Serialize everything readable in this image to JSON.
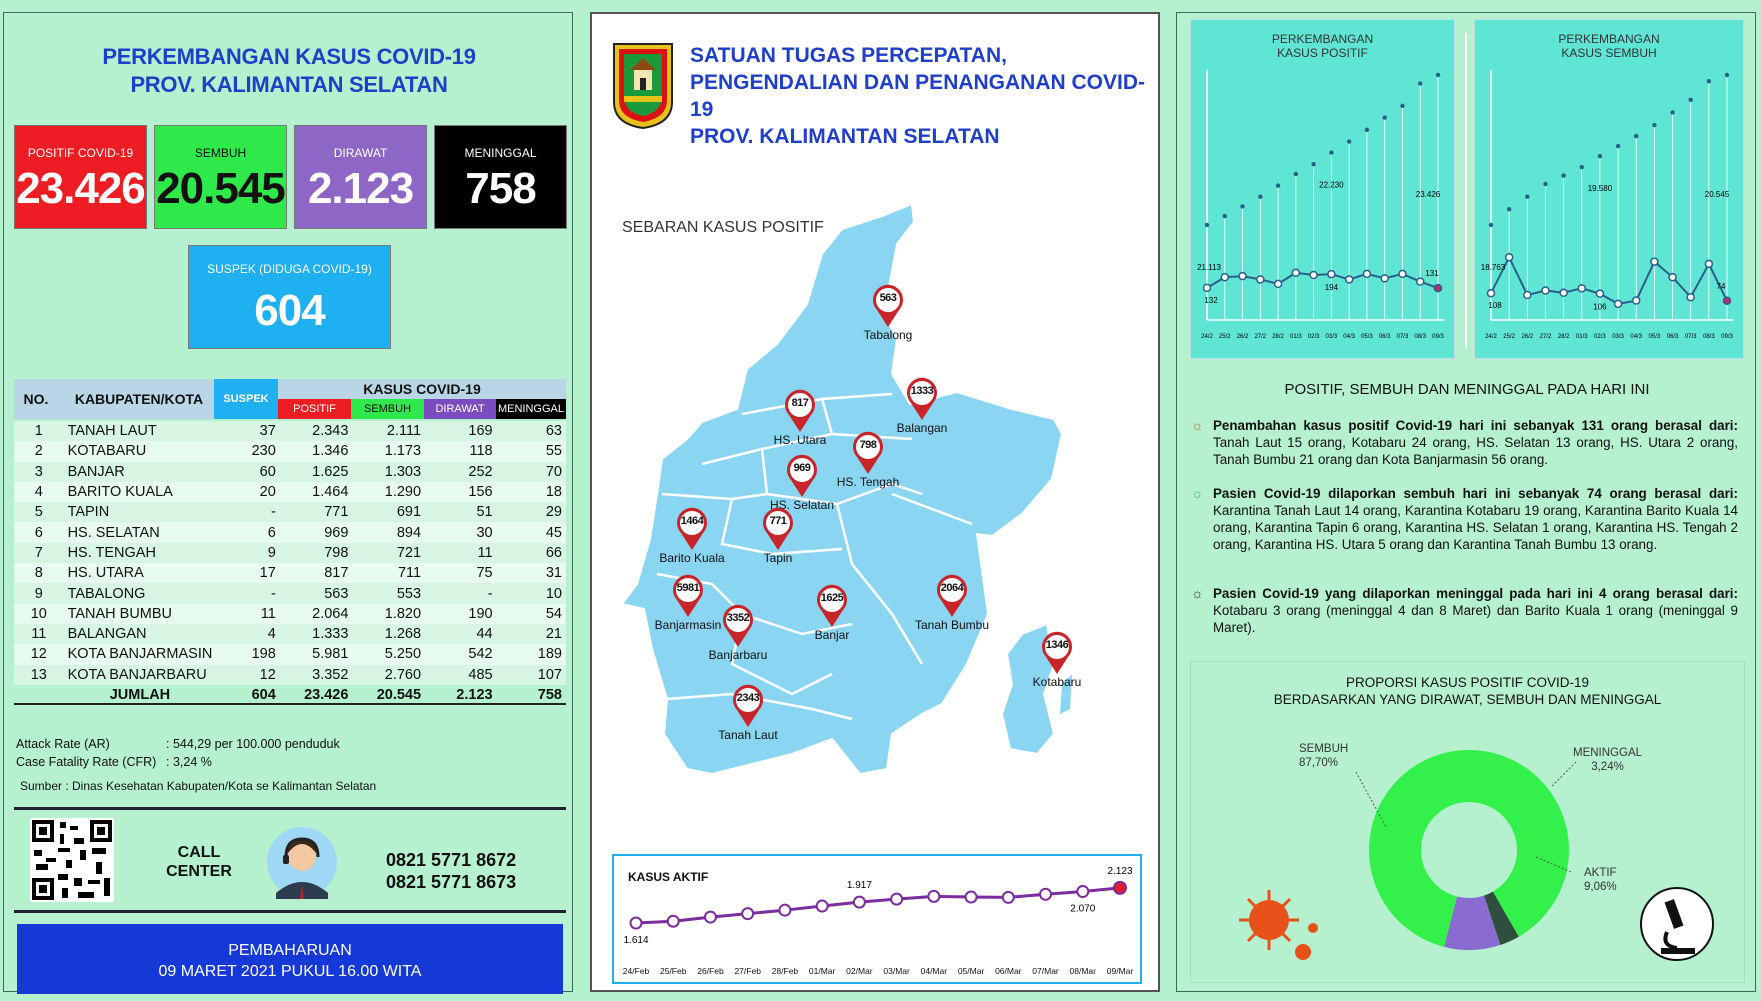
{
  "left": {
    "title_line1": "PERKEMBANGAN KASUS COVID-19",
    "title_line2": "PROV. KALIMANTAN SELATAN",
    "stats": {
      "positif_label": "POSITIF COVID-19",
      "positif_value": "23.426",
      "sembuh_label": "SEMBUH",
      "sembuh_value": "20.545",
      "dirawat_label": "DIRAWAT",
      "dirawat_value": "2.123",
      "meninggal_label": "MENINGGAL",
      "meninggal_value": "758",
      "suspek_label": "SUSPEK (DIDUGA COVID-19)",
      "suspek_value": "604"
    },
    "table": {
      "h_no": "NO.",
      "h_kab": "KABUPATEN/KOTA",
      "h_suspek": "SUSPEK",
      "h_kasus": "KASUS COVID-19",
      "h_positif": "POSITIF",
      "h_sembuh": "SEMBUH",
      "h_dirawat": "DIRAWAT",
      "h_meninggal": "MENINGGAL",
      "rows": [
        [
          "1",
          "TANAH LAUT",
          "37",
          "2.343",
          "2.111",
          "169",
          "63"
        ],
        [
          "2",
          "KOTABARU",
          "230",
          "1.346",
          "1.173",
          "118",
          "55"
        ],
        [
          "3",
          "BANJAR",
          "60",
          "1.625",
          "1.303",
          "252",
          "70"
        ],
        [
          "4",
          "BARITO KUALA",
          "20",
          "1.464",
          "1.290",
          "156",
          "18"
        ],
        [
          "5",
          "TAPIN",
          "-",
          "771",
          "691",
          "51",
          "29"
        ],
        [
          "6",
          "HS. SELATAN",
          "6",
          "969",
          "894",
          "30",
          "45"
        ],
        [
          "7",
          "HS. TENGAH",
          "9",
          "798",
          "721",
          "11",
          "66"
        ],
        [
          "8",
          "HS. UTARA",
          "17",
          "817",
          "711",
          "75",
          "31"
        ],
        [
          "9",
          "TABALONG",
          "-",
          "563",
          "553",
          "-",
          "10"
        ],
        [
          "10",
          "TANAH BUMBU",
          "11",
          "2.064",
          "1.820",
          "190",
          "54"
        ],
        [
          "11",
          "BALANGAN",
          "4",
          "1.333",
          "1.268",
          "44",
          "21"
        ],
        [
          "12",
          "KOTA BANJARMASIN",
          "198",
          "5.981",
          "5.250",
          "542",
          "189"
        ],
        [
          "13",
          "KOTA BANJARBARU",
          "12",
          "3.352",
          "2.760",
          "485",
          "107"
        ]
      ],
      "total": [
        "JUMLAH",
        "604",
        "23.426",
        "20.545",
        "2.123",
        "758"
      ]
    },
    "ar_label": "Attack Rate (AR)",
    "ar_value": ": 544,29 per 100.000 penduduk",
    "cfr_label": "Case Fatality Rate (CFR)",
    "cfr_value": ": 3,24 %",
    "source": "Sumber : Dinas Kesehatan Kabupaten/Kota se Kalimantan Selatan",
    "call_center_1": "CALL",
    "call_center_2": "CENTER",
    "phone1": "0821 5771 8672",
    "phone2": "0821 5771 8673",
    "update_1": "PEMBAHARUAN",
    "update_2": "09 MARET 2021 PUKUL 16.00 WITA"
  },
  "middle": {
    "title_1": "SATUAN TUGAS PERCEPATAN,",
    "title_2": "PENGENDALIAN DAN PENANGANAN COVID-19",
    "title_3": "PROV. KALIMANTAN SELATAN",
    "map_title": "SEBARAN KASUS POSITIF",
    "regions": [
      {
        "name": "Tabalong",
        "value": "563"
      },
      {
        "name": "HS. Utara",
        "value": "817"
      },
      {
        "name": "Balangan",
        "value": "1333"
      },
      {
        "name": "HS. Tengah",
        "value": "798"
      },
      {
        "name": "HS. Selatan",
        "value": "969"
      },
      {
        "name": "Barito Kuala",
        "value": "1464"
      },
      {
        "name": "Tapin",
        "value": "771"
      },
      {
        "name": "Banjarmasin",
        "value": "5981"
      },
      {
        "name": "Banjarbaru",
        "value": "3352"
      },
      {
        "name": "Banjar",
        "value": "1625"
      },
      {
        "name": "Tanah Bumbu",
        "value": "2064"
      },
      {
        "name": "Kotabaru",
        "value": "1346"
      },
      {
        "name": "Tanah Laut",
        "value": "2343"
      }
    ],
    "kasus_aktif_title": "KASUS AKTIF"
  },
  "right": {
    "chart1_title_1": "PERKEMBANGAN",
    "chart1_title_2": "KASUS POSITIF",
    "chart2_title_1": "PERKEMBANGAN",
    "chart2_title_2": "KASUS SEMBUH",
    "today_title": "POSITIF, SEMBUH DAN MENINGGAL PADA HARI INI",
    "b1_bold": "Penambahan kasus positif Covid-19 hari ini sebanyak 131 orang berasal dari:",
    "b1_text": " Tanah Laut 15 orang, Kotabaru 24 orang, HS. Selatan 13 orang, HS. Utara 2 orang, Tanah Bumbu 21 orang dan Kota Banjarmasin 56 orang.",
    "b2_bold": "Pasien Covid-19 dilaporkan sembuh hari ini sebanyak 74 orang berasal dari:",
    "b2_text": " Karantina Tanah Laut 14 orang, Karantina Kotabaru 19 orang, Karantina Barito Kuala 14 orang, Karantina Tapin 6 orang, Karantina HS. Selatan 1 orang, Karantina HS. Tengah 2 orang, Karantina HS. Utara 5 orang dan Karantina Tanah Bumbu 13 orang.",
    "b3_bold": "Pasien Covid-19 yang dilaporkan meninggal pada hari ini 4 orang berasal dari:",
    "b3_text": " Kotabaru 3 orang (meninggal 4 dan 8 Maret) dan Barito Kuala 1 orang (meninggal 9 Maret).",
    "prop_title_1": "PROPORSI KASUS POSITIF COVID-19",
    "prop_title_2": "BERDASARKAN YANG DIRAWAT, SEMBUH DAN MENINGGAL",
    "donut": {
      "sembuh_label": "SEMBUH",
      "sembuh_pct": "87,70%",
      "meninggal_label": "MENINGGAL",
      "meninggal_pct": "3,24%",
      "aktif_label": "AKTIF",
      "aktif_pct": "9,06%"
    }
  },
  "chart_data": [
    {
      "type": "line",
      "title": "KASUS AKTIF",
      "x": [
        "24/Feb",
        "25/Feb",
        "26/Feb",
        "27/Feb",
        "28/Feb",
        "01/Mar",
        "02/Mar",
        "03/Mar",
        "04/Mar",
        "05/Mar",
        "06/Mar",
        "07/Mar",
        "08/Mar",
        "09/Mar"
      ],
      "values": [
        1614,
        1640,
        1700,
        1750,
        1800,
        1860,
        1917,
        1960,
        2000,
        1990,
        1985,
        2030,
        2070,
        2123
      ],
      "labels_shown": {
        "0": "1.614",
        "6": "1.917",
        "12": "2.070",
        "13": "2.123"
      },
      "color": "#7b2c9e"
    },
    {
      "type": "line",
      "title": "PERKEMBANGAN KASUS POSITIF",
      "x": [
        "24/2",
        "25/2",
        "26/2",
        "27/2",
        "28/2",
        "01/3",
        "02/3",
        "03/3",
        "04/3",
        "05/3",
        "06/3",
        "07/3",
        "08/3",
        "09/3"
      ],
      "cumulative": [
        21113,
        21250,
        21400,
        21550,
        21720,
        21900,
        22050,
        22230,
        22400,
        22580,
        22770,
        22950,
        23295,
        23426
      ],
      "daily": [
        132,
        180,
        185,
        170,
        150,
        200,
        190,
        194,
        170,
        195,
        175,
        195,
        160,
        131
      ],
      "labels_shown": {
        "cum_0": "21.113",
        "cum_7": "22.230",
        "cum_13": "23.426",
        "daily_0": "132",
        "daily_7": "194",
        "daily_13": "131"
      }
    },
    {
      "type": "line",
      "title": "PERKEMBANGAN KASUS SEMBUH",
      "x": [
        "24/2",
        "25/2",
        "26/2",
        "27/2",
        "28/2",
        "01/3",
        "02/3",
        "03/3",
        "04/3",
        "05/3",
        "06/3",
        "07/3",
        "08/3",
        "09/3"
      ],
      "cumulative": [
        18763,
        18950,
        19100,
        19250,
        19350,
        19450,
        19580,
        19700,
        19820,
        19950,
        20100,
        20250,
        20471,
        20545
      ],
      "daily": [
        108,
        270,
        100,
        120,
        110,
        130,
        106,
        60,
        75,
        250,
        180,
        90,
        240,
        74
      ],
      "labels_shown": {
        "cum_0": "18.763",
        "cum_6": "19.580",
        "cum_13": "20.545",
        "daily_0": "108",
        "daily_6": "106",
        "daily_13": "74"
      }
    }
  ]
}
